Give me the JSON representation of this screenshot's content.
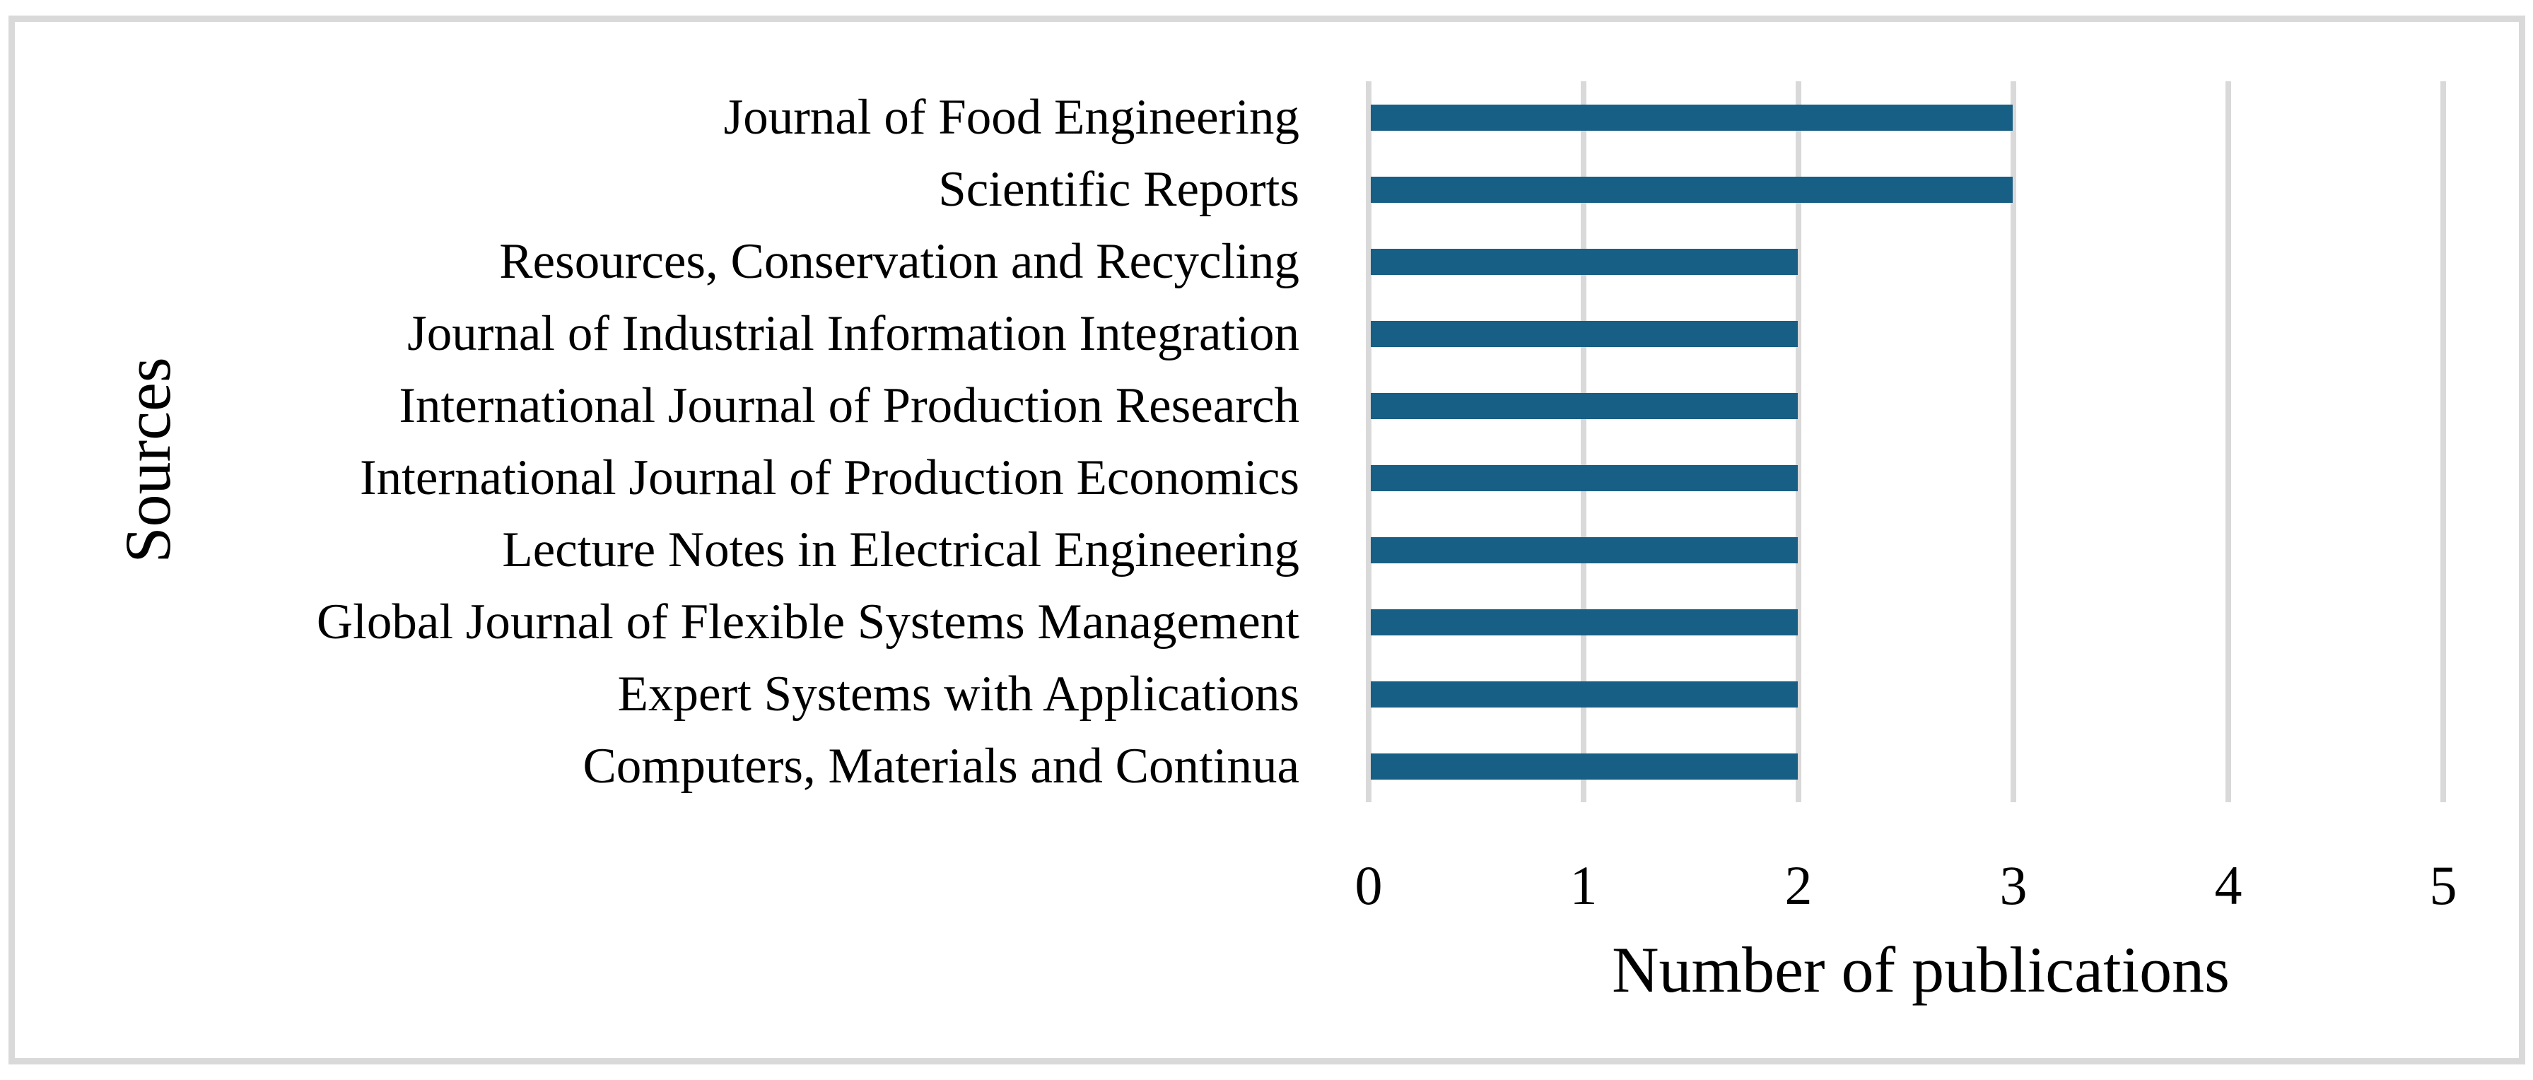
{
  "figure": {
    "background_color": "#FFFFFF",
    "border_color": "#D9D9D9"
  },
  "chart_data": {
    "type": "bar",
    "orientation": "horizontal",
    "title": "",
    "xlabel": "Number of publications",
    "ylabel": "Sources",
    "categories": [
      "Journal of Food Engineering",
      "Scientific Reports",
      "Resources, Conservation and Recycling",
      "Journal of Industrial Information Integration",
      "International Journal of Production Research",
      "International Journal of Production Economics",
      "Lecture Notes in Electrical Engineering",
      "Global Journal of Flexible Systems Management",
      "Expert Systems with Applications",
      "Computers, Materials and Continua"
    ],
    "values": [
      3,
      3,
      2,
      2,
      2,
      2,
      2,
      2,
      2,
      2
    ],
    "xlim": [
      0,
      5
    ],
    "xticks": [
      0,
      1,
      2,
      3,
      4,
      5
    ],
    "grid": "vertical",
    "legend": "none",
    "bar_color": "#185F85",
    "gridline_color": "#D9D9D9"
  }
}
